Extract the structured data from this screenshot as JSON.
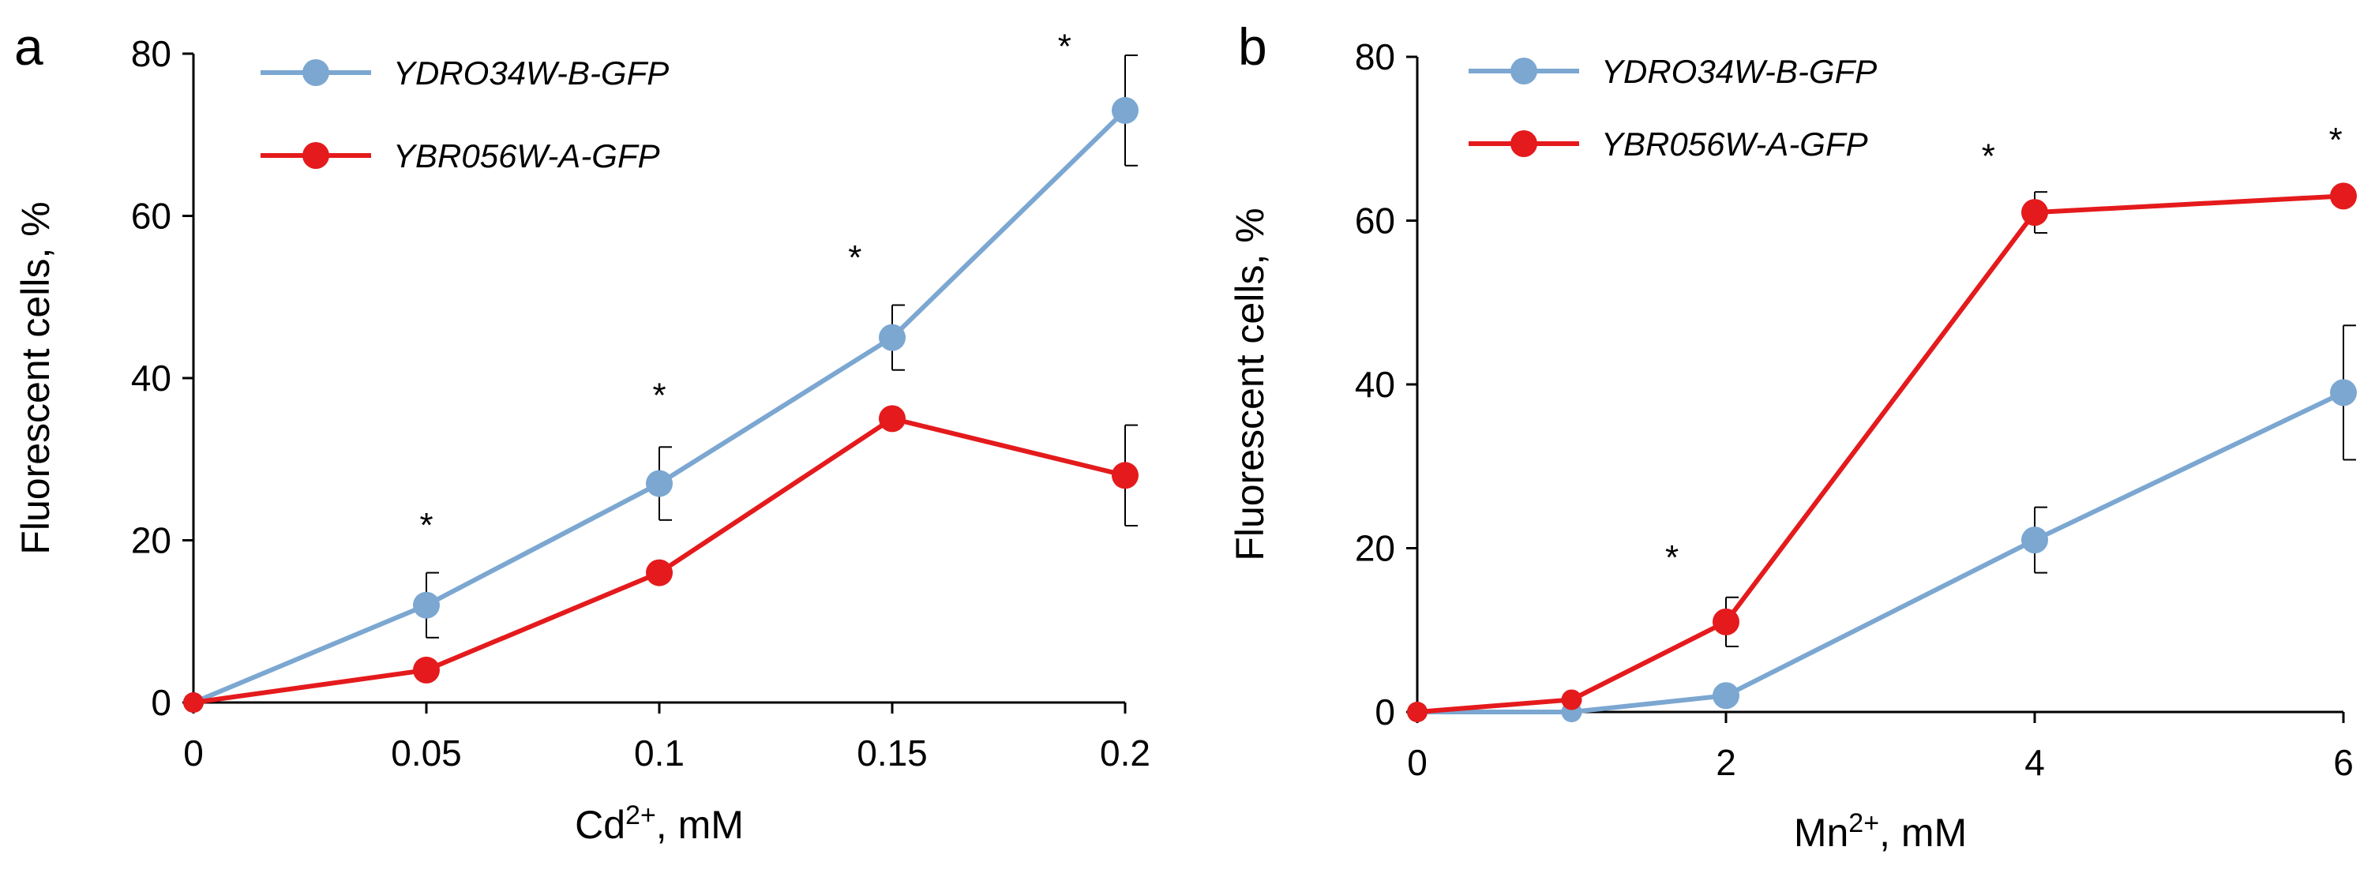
{
  "colors": {
    "series_blue": "#7BA7D1",
    "series_red": "#E41A1C",
    "axis": "#000000"
  },
  "chart_data": [
    {
      "type": "line",
      "panel_label": "a",
      "title": "",
      "xlabel": "Cd",
      "xlabel_sup": "2+",
      "xlabel_suffix": ", mM",
      "ylabel": "Fluorescent cells, %",
      "x": [
        0,
        0.05,
        0.1,
        0.15,
        0.2
      ],
      "x_tick_labels": [
        "0",
        "0.05",
        "0.1",
        "0.15",
        "0.2"
      ],
      "xlim": [
        0,
        0.2
      ],
      "ylim": [
        0,
        80
      ],
      "y_ticks": [
        0,
        20,
        40,
        60,
        80
      ],
      "legend_position": "top-left",
      "series": [
        {
          "name": "YDRO34W-B-GFP",
          "color": "#7BA7D1",
          "values": [
            0,
            12,
            27,
            45,
            73
          ],
          "errors": [
            0,
            4,
            4.5,
            4,
            6.8
          ]
        },
        {
          "name": "YBR056W-A-GFP",
          "color": "#E41A1C",
          "values": [
            0,
            4,
            16,
            35,
            28
          ],
          "errors": [
            0,
            0,
            0,
            0,
            6.2
          ]
        }
      ],
      "significance": [
        {
          "x": 0.05,
          "y": 22,
          "label": "*"
        },
        {
          "x": 0.1,
          "y": 38,
          "label": "*"
        },
        {
          "x": 0.142,
          "y": 55,
          "label": "*"
        },
        {
          "x": 0.187,
          "y": 81,
          "label": "*"
        }
      ]
    },
    {
      "type": "line",
      "panel_label": "b",
      "title": "",
      "xlabel": "Mn",
      "xlabel_sup": "2+",
      "xlabel_suffix": ", mM",
      "ylabel": "Fluorescent cells, %",
      "x": [
        0,
        1,
        2,
        4,
        6
      ],
      "x_tick_labels": [
        "0",
        "2",
        "4",
        "6"
      ],
      "x_ticks": [
        0,
        2,
        4,
        6
      ],
      "xlim": [
        0,
        6
      ],
      "ylim": [
        0,
        80
      ],
      "y_ticks": [
        0,
        20,
        40,
        60,
        80
      ],
      "legend_position": "top-left",
      "series": [
        {
          "name": "YDRO34W-B-GFP",
          "color": "#7BA7D1",
          "values": [
            0,
            0,
            2,
            21,
            39
          ],
          "errors": [
            0,
            0,
            0,
            4,
            8.2
          ]
        },
        {
          "name": "YBR056W-A-GFP",
          "color": "#E41A1C",
          "values": [
            0,
            1.5,
            11,
            61,
            63
          ],
          "errors": [
            0,
            0,
            3,
            2.5,
            0
          ]
        }
      ],
      "significance": [
        {
          "x": 1.65,
          "y": 19,
          "label": "*"
        },
        {
          "x": 3.7,
          "y": 68,
          "label": "*"
        },
        {
          "x": 5.95,
          "y": 70,
          "label": "*"
        }
      ]
    }
  ]
}
